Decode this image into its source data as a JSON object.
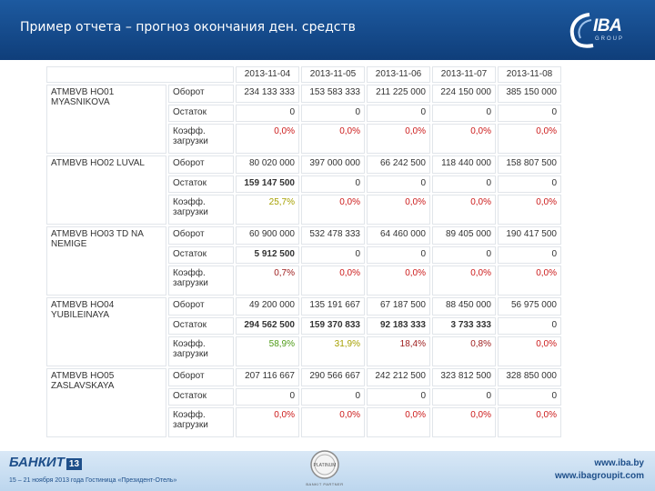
{
  "header": {
    "title": "Пример отчета –  прогноз окончания ден. средств",
    "logo_text": "IBA",
    "logo_subtext": "GROUP",
    "logo_script": "IBA"
  },
  "report": {
    "dates": [
      "2013-11-04",
      "2013-11-05",
      "2013-11-06",
      "2013-11-07",
      "2013-11-08"
    ],
    "terminals": [
      {
        "name": "ATMBVB HO01 MYASNIKOVA",
        "rows": [
          {
            "metric": "Оборот",
            "values": [
              "234 133 333",
              "153 583 333",
              "211 225 000",
              "224 150 000",
              "385 150 000"
            ]
          },
          {
            "metric": "Остаток",
            "values": [
              "0",
              "0",
              "0",
              "0",
              "0"
            ]
          },
          {
            "metric": "Коэфф. загрузки",
            "values": [
              "0,0%",
              "0,0%",
              "0,0%",
              "0,0%",
              "0,0%"
            ]
          }
        ]
      },
      {
        "name": "ATMBVB HO02 LUVAL",
        "rows": [
          {
            "metric": "Оборот",
            "values": [
              "80 020 000",
              "397 000 000",
              "66 242 500",
              "118 440 000",
              "158 807 500"
            ]
          },
          {
            "metric": "Остаток",
            "values": [
              "159 147 500",
              "0",
              "0",
              "0",
              "0"
            ]
          },
          {
            "metric": "Коэфф. загрузки",
            "values": [
              "25,7%",
              "0,0%",
              "0,0%",
              "0,0%",
              "0,0%"
            ]
          }
        ]
      },
      {
        "name": "ATMBVB HO03 TD NA NEMIGE",
        "rows": [
          {
            "metric": "Оборот",
            "values": [
              "60 900 000",
              "532 478 333",
              "64 460 000",
              "89 405 000",
              "190 417 500"
            ]
          },
          {
            "metric": "Остаток",
            "values": [
              "5 912 500",
              "0",
              "0",
              "0",
              "0"
            ]
          },
          {
            "metric": "Коэфф. загрузки",
            "values": [
              "0,7%",
              "0,0%",
              "0,0%",
              "0,0%",
              "0,0%"
            ]
          }
        ]
      },
      {
        "name": "ATMBVB HO04 YUBILEINAYA",
        "rows": [
          {
            "metric": "Оборот",
            "values": [
              "49 200 000",
              "135 191 667",
              "67 187 500",
              "88 450 000",
              "56 975 000"
            ]
          },
          {
            "metric": "Остаток",
            "values": [
              "294 562 500",
              "159 370 833",
              "92 183 333",
              "3 733 333",
              "0"
            ]
          },
          {
            "metric": "Коэфф. загрузки",
            "values": [
              "58,9%",
              "31,9%",
              "18,4%",
              "0,8%",
              "0,0%"
            ]
          }
        ]
      },
      {
        "name": "ATMBVB HO05 ZASLAVSKAYA",
        "rows": [
          {
            "metric": "Оборот",
            "values": [
              "207 116 667",
              "290 566 667",
              "242 212 500",
              "323 812 500",
              "328 850 000"
            ]
          },
          {
            "metric": "Остаток",
            "values": [
              "0",
              "0",
              "0",
              "0",
              "0"
            ]
          },
          {
            "metric": "Коэфф. загрузки",
            "values": [
              "0,0%",
              "0,0%",
              "0,0%",
              "0,0%",
              "0,0%"
            ]
          }
        ]
      }
    ],
    "value_colors": {
      "zero_pct": "#cc1b1b",
      "high": "#4e9b17",
      "mid": "#a6a000",
      "low": "#9c1a1a"
    }
  },
  "footer": {
    "event_logo": "БАНКИТ",
    "event_logo_number": "13",
    "event_text": "15 – 21 ноября 2013 года Гостиница «Президент-Отель»",
    "badge_text": "PLATINUM",
    "badge_label": "BANKIT PARTNER",
    "site1": "www.iba.by",
    "site2": "www.ibagroupit.com"
  },
  "colors": {
    "header_bg": "#174c8e",
    "footer_bg": "#c9def2",
    "accent": "#1e4f8a"
  }
}
